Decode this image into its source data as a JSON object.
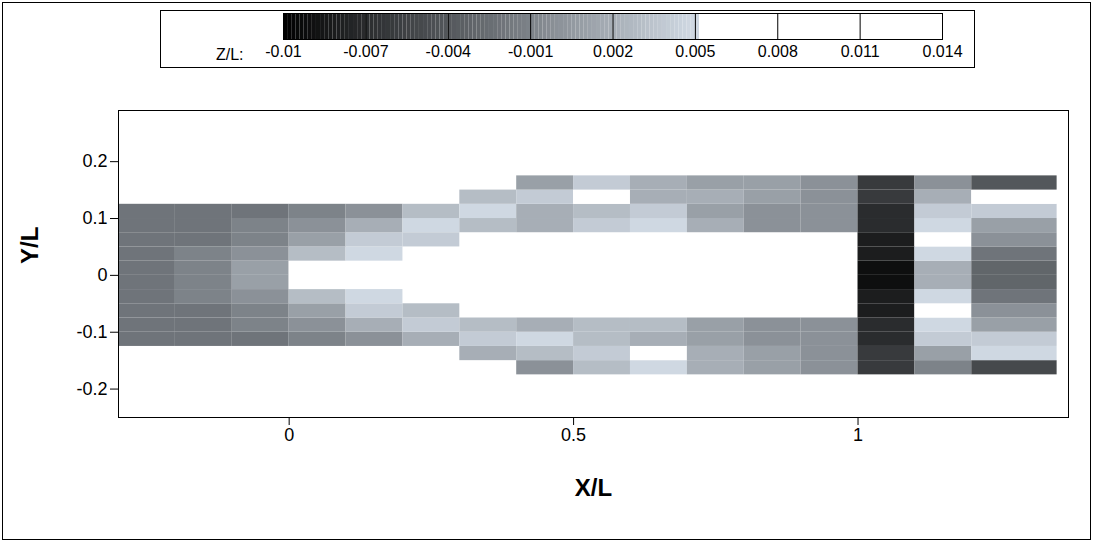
{
  "chart_data": {
    "type": "heatmap",
    "xlabel": "X/L",
    "ylabel": "Y/L",
    "xlim": [
      -0.3,
      1.37
    ],
    "ylim": [
      -0.25,
      0.29
    ],
    "xticks": [
      0,
      0.5,
      1
    ],
    "yticks": [
      -0.2,
      -0.1,
      0,
      0.1,
      0.2
    ],
    "x_bins": [
      -0.3,
      -0.2,
      -0.1,
      0,
      0.1,
      0.2,
      0.3,
      0.4,
      0.5,
      0.6,
      0.7,
      0.8,
      0.9,
      1.0,
      1.1,
      1.2,
      1.35
    ],
    "y_bins": [
      -0.175,
      -0.15,
      -0.125,
      -0.1,
      -0.075,
      -0.05,
      -0.025,
      0,
      0.025,
      0.05,
      0.075,
      0.1,
      0.125,
      0.15,
      0.175
    ],
    "z": [
      [
        null,
        null,
        null,
        null,
        null,
        null,
        null,
        0.0,
        0.003,
        0.005,
        0.002,
        0.001,
        0.0,
        -0.006,
        -0.001,
        -0.005
      ],
      [
        null,
        null,
        null,
        null,
        null,
        null,
        0.002,
        0.003,
        0.004,
        0.006,
        0.002,
        0.001,
        0.0,
        -0.006,
        0.001,
        0.005
      ],
      [
        -0.002,
        -0.002,
        -0.002,
        -0.001,
        0.0,
        0.002,
        0.004,
        0.005,
        0.003,
        0.002,
        0.001,
        0.0,
        0.0,
        -0.007,
        0.004,
        0.004
      ],
      [
        -0.002,
        -0.002,
        -0.001,
        0.0,
        0.002,
        0.004,
        0.003,
        0.002,
        0.003,
        0.003,
        0.001,
        0.0,
        0.0,
        -0.007,
        0.005,
        0.001
      ],
      [
        -0.002,
        -0.002,
        -0.001,
        0.001,
        0.004,
        0.003,
        null,
        null,
        null,
        null,
        null,
        null,
        null,
        -0.008,
        0.006,
        0.0
      ],
      [
        -0.002,
        -0.001,
        0.0,
        0.003,
        0.005,
        null,
        null,
        null,
        null,
        null,
        null,
        null,
        null,
        -0.008,
        0.005,
        -0.002
      ],
      [
        -0.002,
        -0.001,
        0.001,
        0.006,
        null,
        null,
        null,
        null,
        null,
        null,
        null,
        null,
        null,
        -0.009,
        0.002,
        -0.003
      ],
      [
        -0.002,
        -0.001,
        0.001,
        0.006,
        null,
        null,
        null,
        null,
        null,
        null,
        null,
        null,
        null,
        -0.009,
        0.002,
        -0.003
      ],
      [
        -0.002,
        -0.001,
        0.0,
        0.003,
        0.005,
        null,
        null,
        null,
        null,
        null,
        null,
        null,
        null,
        -0.008,
        0.005,
        -0.002
      ],
      [
        -0.002,
        -0.002,
        -0.001,
        0.001,
        0.004,
        0.004,
        null,
        null,
        null,
        null,
        null,
        null,
        null,
        -0.008,
        0.006,
        0.0
      ],
      [
        -0.002,
        -0.002,
        -0.001,
        0.0,
        0.002,
        0.005,
        0.003,
        0.002,
        0.004,
        0.005,
        0.002,
        0.0,
        0.0,
        -0.007,
        0.005,
        0.001
      ],
      [
        -0.002,
        -0.002,
        -0.002,
        -0.001,
        0.0,
        0.003,
        0.005,
        0.002,
        0.003,
        0.004,
        0.001,
        0.0,
        0.0,
        -0.007,
        0.004,
        0.004
      ],
      [
        null,
        null,
        null,
        null,
        null,
        null,
        0.003,
        0.004,
        0.006,
        0.002,
        0.002,
        0.001,
        0.0,
        -0.006,
        0.002,
        0.006
      ],
      [
        null,
        null,
        null,
        null,
        null,
        null,
        null,
        0.001,
        0.004,
        0.002,
        0.001,
        0.001,
        0.0,
        -0.006,
        0.0,
        -0.004
      ]
    ],
    "colorbar": {
      "label": "Z/L:",
      "range": [
        -0.01,
        0.014
      ],
      "ticks": [
        -0.01,
        -0.007,
        -0.004,
        -0.001,
        0.002,
        0.005,
        0.008,
        0.011,
        0.014
      ]
    }
  }
}
